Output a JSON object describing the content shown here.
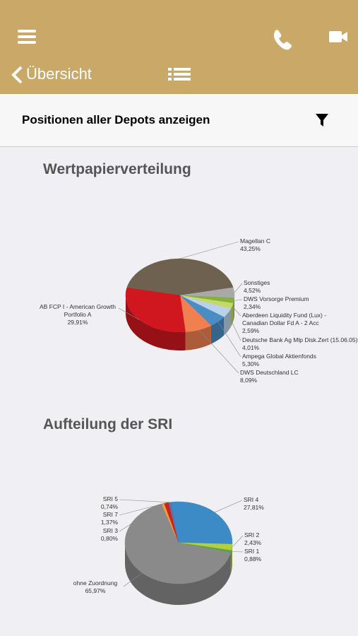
{
  "header": {
    "back_label": "Übersicht"
  },
  "filter_bar": {
    "label": "Positionen aller Depots anzeigen"
  },
  "chart_data": [
    {
      "type": "pie",
      "title": "Wertpapierverteilung",
      "categories": [
        "Magellan C",
        "Sonstiges",
        "DWS Vorsorge Premium",
        "Aberdeen Liquidity Fund (Lux) - Canadian Dollar Fd A - 2 Acc",
        "Deutsche Bank Ag Mlp Disk.Zert (15.06.05)",
        "Ampega Global Aktienfonds",
        "DWS Deutschland LC",
        "AB FCP I - American Growth Portfolio A"
      ],
      "values": [
        43.25,
        4.52,
        2.34,
        2.59,
        4.01,
        5.3,
        8.09,
        29.91
      ],
      "value_labels": [
        "43,25%",
        "4,52%",
        "2,34%",
        "2,59%",
        "4,01%",
        "5,30%",
        "8,09%",
        "29,91%"
      ],
      "colors": [
        "#6e6150",
        "#a9a9a9",
        "#86b03c",
        "#c3d96a",
        "#b9d2e8",
        "#4a8cc4",
        "#f08050",
        "#d0171f"
      ]
    },
    {
      "type": "pie",
      "title": "Aufteilung der SRI",
      "categories": [
        "SRI 4",
        "SRI 2",
        "SRI 1",
        "ohne Zuordnung",
        "SRI 3",
        "SRI 7",
        "SRI 5"
      ],
      "values": [
        27.81,
        2.43,
        0.88,
        65.97,
        0.8,
        1.37,
        0.74
      ],
      "value_labels": [
        "27,81%",
        "2,43%",
        "0,88%",
        "65,97%",
        "0,80%",
        "1,37%",
        "0,74%"
      ],
      "colors": [
        "#3d8bc6",
        "#b5cf3a",
        "#5aa34a",
        "#8a8a8a",
        "#f0a030",
        "#cc2222",
        "#5577aa"
      ]
    }
  ]
}
